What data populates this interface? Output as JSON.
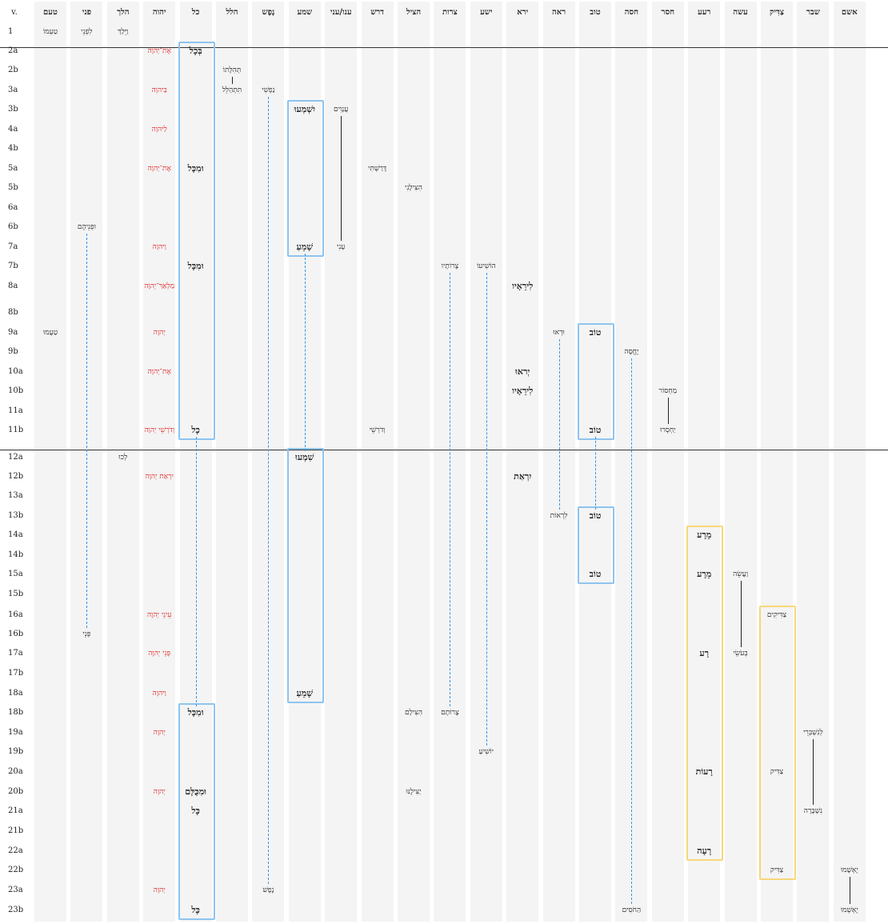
{
  "first_header": "v.",
  "columns": [
    {
      "key": "taam",
      "label": "טעם"
    },
    {
      "key": "panim",
      "label": "פני"
    },
    {
      "key": "halak",
      "label": "הלך"
    },
    {
      "key": "yhwh",
      "label": "יהוה"
    },
    {
      "key": "kol",
      "label": "כל"
    },
    {
      "key": "halal",
      "label": "הלל"
    },
    {
      "key": "nefesh",
      "label": "נֶפֶש"
    },
    {
      "key": "shama",
      "label": "שמע"
    },
    {
      "key": "anaw",
      "label": "ענו/עני"
    },
    {
      "key": "darash",
      "label": "דרש"
    },
    {
      "key": "natsal",
      "label": "הציל"
    },
    {
      "key": "tsarot",
      "label": "צרות"
    },
    {
      "key": "yasha",
      "label": "ישע"
    },
    {
      "key": "yare",
      "label": "ירא"
    },
    {
      "key": "raah",
      "label": "ראה"
    },
    {
      "key": "tov",
      "label": "טוב"
    },
    {
      "key": "hasah",
      "label": "חסה"
    },
    {
      "key": "haser",
      "label": "חסר"
    },
    {
      "key": "ra",
      "label": "רעע"
    },
    {
      "key": "asah",
      "label": "עשה"
    },
    {
      "key": "tsaddiq",
      "label": "צַדִּיק"
    },
    {
      "key": "shabar",
      "label": "שבר"
    },
    {
      "key": "asham",
      "label": "אשם"
    }
  ],
  "rows": [
    "1",
    "2a",
    "2b",
    "3a",
    "3b",
    "4a",
    "4b",
    "5a",
    "5b",
    "6a",
    "6b",
    "7a",
    "7b",
    "8a",
    "8b",
    "9a",
    "9b",
    "10a",
    "10b",
    "11a",
    "11b",
    "12a",
    "12b",
    "13a",
    "13b",
    "14a",
    "14b",
    "15a",
    "15b",
    "16a",
    "16b",
    "17a",
    "17b",
    "18a",
    "18b",
    "19a",
    "19b",
    "20a",
    "20b",
    "21a",
    "21b",
    "22a",
    "22b",
    "23a",
    "23b"
  ],
  "cells": [
    {
      "row": "1",
      "col": "taam",
      "text": "טַעְמוֹ"
    },
    {
      "row": "1",
      "col": "panim",
      "text": "לִפְנֵי"
    },
    {
      "row": "1",
      "col": "halak",
      "text": "וַיֵּלַךְ"
    },
    {
      "row": "2a",
      "col": "yhwh",
      "text": "אֶת־יְהוָה",
      "style": "red"
    },
    {
      "row": "2a",
      "col": "kol",
      "text": "בְּכָל",
      "style": "bold"
    },
    {
      "row": "2b",
      "col": "halal",
      "text": "תְּהִלָּתוֹ"
    },
    {
      "row": "3a",
      "col": "yhwh",
      "text": "בַּיהוָה",
      "style": "red"
    },
    {
      "row": "3a",
      "col": "halal",
      "text": "תִּתְהַלֵּל"
    },
    {
      "row": "3a",
      "col": "nefesh",
      "text": "נַפְשִׁי"
    },
    {
      "row": "3b",
      "col": "shama",
      "text": "יִשְׁמְעוּ",
      "style": "bold"
    },
    {
      "row": "3b",
      "col": "anaw",
      "text": "עֲנָוִים"
    },
    {
      "row": "4a",
      "col": "yhwh",
      "text": "לַיהוָה",
      "style": "red"
    },
    {
      "row": "5a",
      "col": "yhwh",
      "text": "אֶת־יְהוָה",
      "style": "red"
    },
    {
      "row": "5a",
      "col": "kol",
      "text": "וּמִכָּל",
      "style": "bold"
    },
    {
      "row": "5a",
      "col": "darash",
      "text": "דָּרַשְׁתִּי"
    },
    {
      "row": "5b",
      "col": "natsal",
      "text": "הִצִּילָנִי"
    },
    {
      "row": "6b",
      "col": "panim",
      "text": "וּפְנֵיהֶם"
    },
    {
      "row": "7a",
      "col": "yhwh",
      "text": "וַיהוָה",
      "style": "red"
    },
    {
      "row": "7a",
      "col": "shama",
      "text": "שָׁמֵעַ",
      "style": "bold"
    },
    {
      "row": "7a",
      "col": "anaw",
      "text": "עָנִי"
    },
    {
      "row": "7b",
      "col": "kol",
      "text": "וּמִכָּל",
      "style": "bold"
    },
    {
      "row": "7b",
      "col": "tsarot",
      "text": "צָרוֹתָיו"
    },
    {
      "row": "7b",
      "col": "yasha",
      "text": "הוֹשִׁיעוֹ"
    },
    {
      "row": "8a",
      "col": "yhwh",
      "text": "מַלְאַךְ־יְהוָה",
      "style": "red"
    },
    {
      "row": "8a",
      "col": "yare",
      "text": "לִירֵאָיו",
      "style": "bold"
    },
    {
      "row": "9a",
      "col": "taam",
      "text": "טַעֲמוּ"
    },
    {
      "row": "9a",
      "col": "yhwh",
      "text": "יְהוָה",
      "style": "red"
    },
    {
      "row": "9a",
      "col": "raah",
      "text": "וּרְאוּ"
    },
    {
      "row": "9a",
      "col": "tov",
      "text": "טוֹב",
      "style": "bold"
    },
    {
      "row": "9b",
      "col": "hasah",
      "text": "יֶחֱסֶה"
    },
    {
      "row": "10a",
      "col": "yhwh",
      "text": "אֶת־יְהוָה",
      "style": "red"
    },
    {
      "row": "10a",
      "col": "yare",
      "text": "יְראוּ",
      "style": "bold"
    },
    {
      "row": "10b",
      "col": "yare",
      "text": "לִירֵאָיו",
      "style": "bold"
    },
    {
      "row": "10b",
      "col": "haser",
      "text": "מַחְסוֹר"
    },
    {
      "row": "11b",
      "col": "yhwh",
      "text": "וְדֹרְשֵׁי יְהוָה",
      "style": "red"
    },
    {
      "row": "11b",
      "col": "kol",
      "text": "כָל",
      "style": "bold"
    },
    {
      "row": "11b",
      "col": "darash",
      "text": "וְדֹרְשֵׁי"
    },
    {
      "row": "11b",
      "col": "tov",
      "text": "טוֹב",
      "style": "bold"
    },
    {
      "row": "11b",
      "col": "haser",
      "text": "יַחְסְרוּ"
    },
    {
      "row": "12a",
      "col": "halak",
      "text": "לְכוּ"
    },
    {
      "row": "12a",
      "col": "shama",
      "text": "שִׁמְעוּ",
      "style": "bold"
    },
    {
      "row": "12b",
      "col": "yhwh",
      "text": "יִרְאַת יְהוָה",
      "style": "red"
    },
    {
      "row": "12b",
      "col": "yare",
      "text": "יִרְאַת",
      "style": "bold"
    },
    {
      "row": "13b",
      "col": "raah",
      "text": "לִרְאוֹת"
    },
    {
      "row": "13b",
      "col": "tov",
      "text": "טוֹב",
      "style": "bold"
    },
    {
      "row": "14a",
      "col": "ra",
      "text": "מֵרָע",
      "style": "bold"
    },
    {
      "row": "15a",
      "col": "ra",
      "text": "מֵרָע",
      "style": "bold"
    },
    {
      "row": "15a",
      "col": "asah",
      "text": "וַעֲשֵׂה"
    },
    {
      "row": "15a",
      "col": "tov",
      "text": "טוֹב",
      "style": "bold"
    },
    {
      "row": "16a",
      "col": "yhwh",
      "text": "עֵינֵי יְהוָה",
      "style": "red"
    },
    {
      "row": "16a",
      "col": "tsaddiq",
      "text": "צַדִּיקִים"
    },
    {
      "row": "16b",
      "col": "panim",
      "text": "פְּנֵי"
    },
    {
      "row": "17a",
      "col": "yhwh",
      "text": "פְּנֵי יְהוָה",
      "style": "red"
    },
    {
      "row": "17a",
      "col": "ra",
      "text": "רָע",
      "style": "bold"
    },
    {
      "row": "17a",
      "col": "asah",
      "text": "בְּעֹשֵׂי"
    },
    {
      "row": "18a",
      "col": "yhwh",
      "text": "וַיהוָה",
      "style": "red"
    },
    {
      "row": "18a",
      "col": "shama",
      "text": "שָׁמֵעַ",
      "style": "bold"
    },
    {
      "row": "18b",
      "col": "kol",
      "text": "וּמִכָּל",
      "style": "bold"
    },
    {
      "row": "18b",
      "col": "natsal",
      "text": "הִצִּילָם"
    },
    {
      "row": "18b",
      "col": "tsarot",
      "text": "צָרוֹתָם"
    },
    {
      "row": "19a",
      "col": "yhwh",
      "text": "יְהוָה",
      "style": "red"
    },
    {
      "row": "19a",
      "col": "shabar",
      "text": "לְנִשְׁבְּרֵי"
    },
    {
      "row": "19b",
      "col": "yasha",
      "text": "יוֹשִׁיעַ"
    },
    {
      "row": "20a",
      "col": "ra",
      "text": "רָעוֹת",
      "style": "bold"
    },
    {
      "row": "20a",
      "col": "tsaddiq",
      "text": "צַדִּיק"
    },
    {
      "row": "20b",
      "col": "yhwh",
      "text": "יְהוָה",
      "style": "red"
    },
    {
      "row": "20b",
      "col": "kol",
      "text": "וּמִכֻּלָּם",
      "style": "bold"
    },
    {
      "row": "20b",
      "col": "natsal",
      "text": "יַצִּילֶנּוּ"
    },
    {
      "row": "21a",
      "col": "kol",
      "text": "כָּל",
      "style": "bold"
    },
    {
      "row": "21a",
      "col": "shabar",
      "text": "נִשְׁבָּרָה"
    },
    {
      "row": "22a",
      "col": "ra",
      "text": "רָעָה",
      "style": "bold"
    },
    {
      "row": "22b",
      "col": "tsaddiq",
      "text": "צַדִּיק"
    },
    {
      "row": "22b",
      "col": "asham",
      "text": "יֶאְשָׁמוּ"
    },
    {
      "row": "23a",
      "col": "yhwh",
      "text": "יְהוָה",
      "style": "red"
    },
    {
      "row": "23a",
      "col": "nefesh",
      "text": "נֶפֶשׁ"
    },
    {
      "row": "23b",
      "col": "kol",
      "text": "כָּל",
      "style": "bold"
    },
    {
      "row": "23b",
      "col": "hasah",
      "text": "הַחֹסִים"
    },
    {
      "row": "23b",
      "col": "asham",
      "text": "יֶאְשְׁמוּ"
    }
  ],
  "boxes": [
    {
      "col": "kol",
      "from": "2a",
      "to": "11b",
      "color": "blue"
    },
    {
      "col": "shama",
      "from": "3b",
      "to": "7a",
      "color": "blue"
    },
    {
      "col": "tov",
      "from": "9a",
      "to": "11b",
      "color": "blue"
    },
    {
      "col": "shama",
      "from": "12a",
      "to": "18a",
      "color": "blue"
    },
    {
      "col": "tov",
      "from": "13b",
      "to": "15a",
      "color": "blue"
    },
    {
      "col": "kol",
      "from": "18b",
      "to": "23b",
      "color": "blue"
    },
    {
      "col": "ra",
      "from": "14a",
      "to": "22a",
      "color": "yellow"
    },
    {
      "col": "tsaddiq",
      "from": "16a",
      "to": "22b",
      "color": "yellow"
    }
  ],
  "dashed_links": [
    {
      "col": "panim",
      "from": "6b",
      "to": "16b"
    },
    {
      "col": "nefesh",
      "from": "3a",
      "to": "23a"
    },
    {
      "col": "kol",
      "from": "11b",
      "to": "18b"
    },
    {
      "col": "shama",
      "from": "7a",
      "to": "12a"
    },
    {
      "col": "tsarot",
      "from": "7b",
      "to": "18b"
    },
    {
      "col": "yasha",
      "from": "7b",
      "to": "19b"
    },
    {
      "col": "raah",
      "from": "9a",
      "to": "13b"
    },
    {
      "col": "tov",
      "from": "11b",
      "to": "13b"
    },
    {
      "col": "hasah",
      "from": "9b",
      "to": "23b"
    }
  ],
  "solid_links": [
    {
      "col": "halal",
      "from": "2b",
      "to": "3a"
    },
    {
      "col": "anaw",
      "from": "3b",
      "to": "7a"
    },
    {
      "col": "haser",
      "from": "10b",
      "to": "11b"
    },
    {
      "col": "asah",
      "from": "15a",
      "to": "17a"
    },
    {
      "col": "shabar",
      "from": "19a",
      "to": "21a"
    },
    {
      "col": "asham",
      "from": "22b",
      "to": "23b"
    }
  ],
  "section_breaks_before": [
    "2a",
    "12a"
  ]
}
